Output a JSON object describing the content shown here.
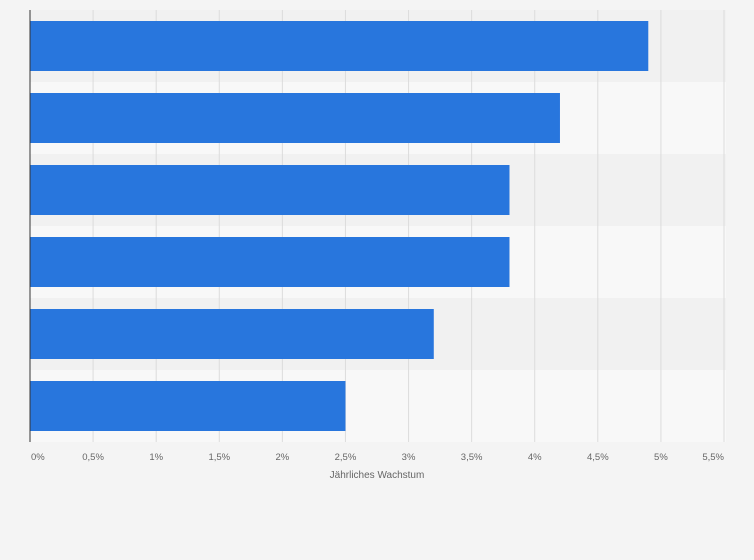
{
  "chart_data": {
    "type": "bar",
    "orientation": "horizontal",
    "categories": [
      "",
      "",
      "",
      "",
      "",
      ""
    ],
    "values": [
      4.9,
      4.2,
      3.8,
      3.8,
      3.2,
      2.5
    ],
    "xlabel": "Jährliches Wachstum",
    "ylabel": "",
    "xlim": [
      0,
      5.5
    ],
    "x_ticks": [
      0,
      0.5,
      1,
      1.5,
      2,
      2.5,
      3,
      3.5,
      4,
      4.5,
      5,
      5.5
    ],
    "x_tick_labels": [
      "0%",
      "0,5%",
      "1%",
      "1,5%",
      "2%",
      "2,5%",
      "3%",
      "3,5%",
      "4%",
      "4,5%",
      "5%",
      "5,5%"
    ],
    "grid": true,
    "legend": "none",
    "colors": {
      "bar": "#2876dd",
      "band_light": "#f8f8f8",
      "band_dark": "#f1f1f1",
      "grid": "#dcdcdc",
      "axis": "#333333",
      "tick_text": "#666666"
    }
  }
}
